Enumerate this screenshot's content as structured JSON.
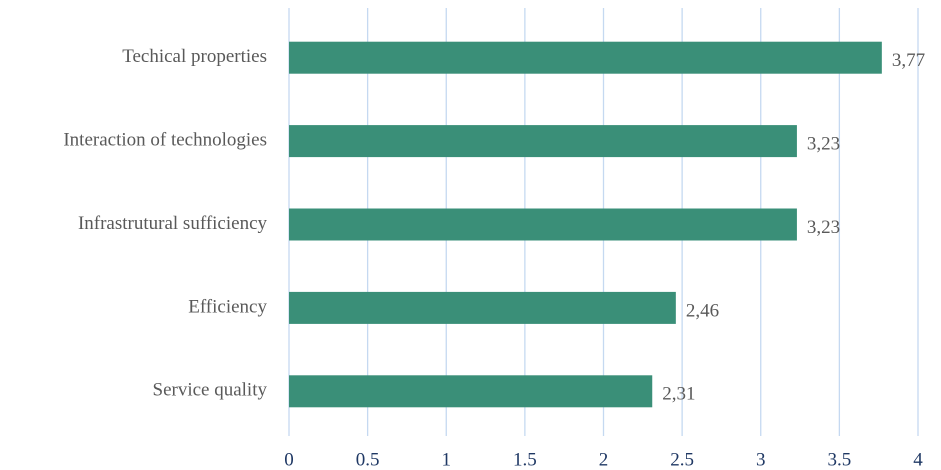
{
  "chart_data": {
    "type": "bar",
    "orientation": "horizontal",
    "categories": [
      "Techical properties",
      "Interaction of technologies",
      "Infrastrutural sufficiency",
      "Efficiency",
      "Service quality"
    ],
    "values": [
      3.77,
      3.23,
      3.23,
      2.46,
      2.31
    ],
    "value_labels": [
      "3,77",
      "3,23",
      "3,23",
      "2,46",
      "2,31"
    ],
    "color": "#3a8f78",
    "xlim": [
      0,
      4
    ],
    "xticks": [
      0,
      0.5,
      1,
      1.5,
      2,
      2.5,
      3,
      3.5,
      4
    ],
    "grid": true
  }
}
